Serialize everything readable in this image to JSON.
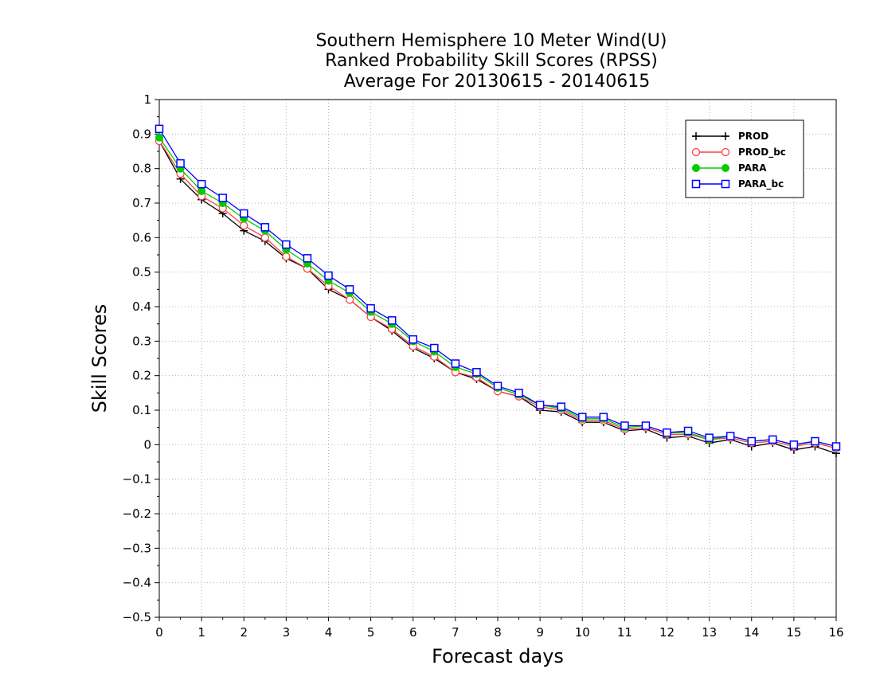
{
  "chart_data": {
    "type": "line",
    "title_lines": [
      "Southern Hemisphere 10 Meter Wind(U)",
      "Ranked Probability Skill Scores (RPSS)",
      "Average For 20130615 - 20140615"
    ],
    "xlabel": "Forecast days",
    "ylabel": "Skill Scores",
    "xlim": [
      0,
      16
    ],
    "ylim": [
      -0.5,
      1
    ],
    "x_ticks": [
      "0",
      "1",
      "2",
      "3",
      "4",
      "5",
      "6",
      "7",
      "8",
      "9",
      "10",
      "11",
      "12",
      "13",
      "14",
      "15",
      "16"
    ],
    "y_ticks": [
      "1",
      "0.9",
      "0.8",
      "0.7",
      "0.6",
      "0.5",
      "0.4",
      "0.3",
      "0.2",
      "0.1",
      "0",
      "-0.1",
      "-0.2",
      "-0.3",
      "-0.4",
      "-0.5"
    ],
    "grid": true,
    "legend_position": "top-right",
    "x": [
      0,
      0.5,
      1,
      1.5,
      2,
      2.5,
      3,
      3.5,
      4,
      4.5,
      5,
      5.5,
      6,
      6.5,
      7,
      7.5,
      8,
      8.5,
      9,
      9.5,
      10,
      10.5,
      11,
      11.5,
      12,
      12.5,
      13,
      13.5,
      14,
      14.5,
      15,
      15.5,
      16
    ],
    "series": [
      {
        "name": "PROD",
        "color": "#000000",
        "marker": "plus",
        "values": [
          0.88,
          0.77,
          0.71,
          0.67,
          0.62,
          0.59,
          0.54,
          0.51,
          0.45,
          0.42,
          0.37,
          0.33,
          0.28,
          0.25,
          0.21,
          0.19,
          0.155,
          0.14,
          0.1,
          0.095,
          0.065,
          0.065,
          0.04,
          0.045,
          0.02,
          0.025,
          0.005,
          0.015,
          -0.005,
          0.005,
          -0.015,
          -0.005,
          -0.025
        ]
      },
      {
        "name": "PROD_bc",
        "color": "#ff4040",
        "marker": "circle",
        "values": [
          0.88,
          0.785,
          0.72,
          0.685,
          0.635,
          0.6,
          0.545,
          0.51,
          0.46,
          0.42,
          0.37,
          0.335,
          0.285,
          0.255,
          0.21,
          0.195,
          0.155,
          0.14,
          0.11,
          0.1,
          0.07,
          0.07,
          0.045,
          0.05,
          0.03,
          0.03,
          0.015,
          0.02,
          0.005,
          0.01,
          -0.005,
          0.005,
          -0.01
        ]
      },
      {
        "name": "PARA",
        "color": "#00cc00",
        "marker": "filled-circle",
        "values": [
          0.89,
          0.8,
          0.735,
          0.7,
          0.655,
          0.62,
          0.565,
          0.525,
          0.475,
          0.44,
          0.385,
          0.35,
          0.3,
          0.27,
          0.225,
          0.205,
          0.165,
          0.145,
          0.115,
          0.105,
          0.075,
          0.075,
          0.05,
          0.055,
          0.035,
          0.035,
          0.015,
          0.025,
          0.01,
          0.015,
          0.0,
          0.01,
          -0.005
        ]
      },
      {
        "name": "PARA_bc",
        "color": "#0000ff",
        "marker": "square",
        "values": [
          0.915,
          0.815,
          0.755,
          0.715,
          0.67,
          0.63,
          0.58,
          0.54,
          0.49,
          0.45,
          0.395,
          0.36,
          0.305,
          0.28,
          0.235,
          0.21,
          0.17,
          0.15,
          0.115,
          0.11,
          0.08,
          0.08,
          0.055,
          0.055,
          0.035,
          0.04,
          0.02,
          0.025,
          0.01,
          0.015,
          0.0,
          0.01,
          -0.005
        ]
      }
    ]
  }
}
